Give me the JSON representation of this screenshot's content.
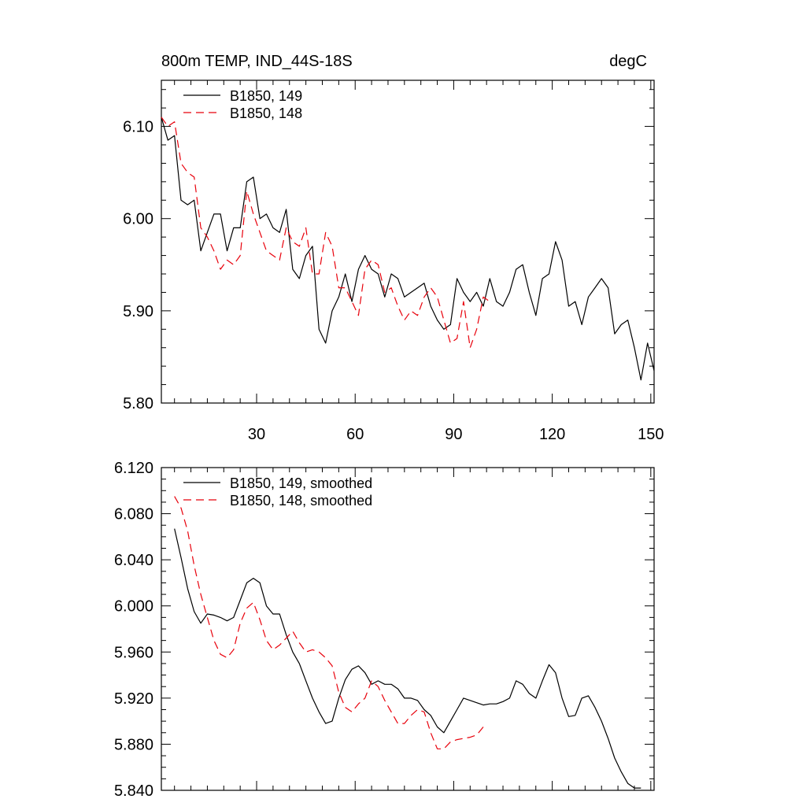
{
  "chart_data": [
    {
      "type": "line",
      "title_left": "800m TEMP, IND_44S-18S",
      "title_right": "degC",
      "xlim": [
        1,
        151
      ],
      "ylim": [
        5.8,
        6.15
      ],
      "yticks": [
        5.8,
        5.9,
        6.0,
        6.1
      ],
      "ytick_labels": [
        "5.80",
        "5.90",
        "6.00",
        "6.10"
      ],
      "xticks": [
        30,
        60,
        90,
        120,
        150
      ],
      "xtick_labels": [
        "30",
        "60",
        "90",
        "120",
        "150"
      ],
      "series": [
        {
          "name": "B1850, 149",
          "color": "#000000",
          "dash": "solid",
          "x": [
            1,
            3,
            5,
            7,
            9,
            11,
            13,
            15,
            17,
            19,
            21,
            23,
            25,
            27,
            29,
            31,
            33,
            35,
            37,
            39,
            41,
            43,
            45,
            47,
            49,
            51,
            53,
            55,
            57,
            59,
            61,
            63,
            65,
            67,
            69,
            71,
            73,
            75,
            77,
            79,
            81,
            83,
            85,
            87,
            89,
            91,
            93,
            95,
            97,
            99,
            101,
            103,
            105,
            107,
            109,
            111,
            113,
            115,
            117,
            119,
            121,
            123,
            125,
            127,
            129,
            131,
            133,
            135,
            137,
            139,
            141,
            143,
            145,
            147,
            149,
            151
          ],
          "values": [
            6.11,
            6.085,
            6.09,
            6.02,
            6.015,
            6.02,
            5.965,
            5.985,
            6.005,
            6.005,
            5.965,
            5.99,
            5.99,
            6.04,
            6.045,
            6.0,
            6.005,
            5.99,
            5.985,
            6.01,
            5.945,
            5.935,
            5.96,
            5.97,
            5.88,
            5.865,
            5.9,
            5.915,
            5.94,
            5.91,
            5.945,
            5.96,
            5.945,
            5.94,
            5.915,
            5.94,
            5.935,
            5.915,
            5.92,
            5.925,
            5.93,
            5.905,
            5.89,
            5.88,
            5.885,
            5.935,
            5.92,
            5.91,
            5.92,
            5.905,
            5.935,
            5.91,
            5.905,
            5.92,
            5.945,
            5.95,
            5.92,
            5.895,
            5.935,
            5.94,
            5.975,
            5.955,
            5.905,
            5.91,
            5.885,
            5.915,
            5.925,
            5.935,
            5.925,
            5.875,
            5.885,
            5.89,
            5.86,
            5.825,
            5.865,
            5.835
          ]
        },
        {
          "name": "B1850, 148",
          "color": "#e8000b",
          "dash": "10,6",
          "x": [
            1,
            3,
            5,
            7,
            9,
            11,
            13,
            15,
            17,
            19,
            21,
            23,
            25,
            27,
            29,
            31,
            33,
            35,
            37,
            39,
            41,
            43,
            45,
            47,
            49,
            51,
            53,
            55,
            57,
            59,
            61,
            63,
            65,
            67,
            69,
            71,
            73,
            75,
            77,
            79,
            81,
            83,
            85,
            87,
            89,
            91,
            93,
            95,
            97,
            99,
            101
          ],
          "values": [
            6.11,
            6.1,
            6.105,
            6.06,
            6.05,
            6.045,
            5.99,
            5.98,
            5.965,
            5.945,
            5.955,
            5.95,
            5.96,
            6.03,
            6.005,
            5.985,
            5.965,
            5.96,
            5.955,
            5.99,
            5.975,
            5.97,
            5.99,
            5.94,
            5.94,
            5.985,
            5.97,
            5.925,
            5.925,
            5.91,
            5.895,
            5.945,
            5.955,
            5.95,
            5.92,
            5.925,
            5.905,
            5.89,
            5.9,
            5.895,
            5.915,
            5.925,
            5.915,
            5.89,
            5.865,
            5.87,
            5.91,
            5.86,
            5.88,
            5.915,
            5.91
          ]
        }
      ]
    },
    {
      "type": "line",
      "xlim": [
        1,
        151
      ],
      "ylim": [
        5.84,
        6.12
      ],
      "yticks": [
        5.84,
        5.88,
        5.92,
        5.96,
        6.0,
        6.04,
        6.08,
        6.12
      ],
      "ytick_labels": [
        "5.840",
        "5.880",
        "5.920",
        "5.960",
        "6.000",
        "6.040",
        "6.080",
        "6.120"
      ],
      "xticks": [
        30,
        60,
        90,
        120,
        150
      ],
      "series": [
        {
          "name": "B1850, 149, smoothed",
          "color": "#000000",
          "dash": "solid",
          "x": [
            5,
            7,
            9,
            11,
            13,
            15,
            17,
            19,
            21,
            23,
            25,
            27,
            29,
            31,
            33,
            35,
            37,
            39,
            41,
            43,
            45,
            47,
            49,
            51,
            53,
            55,
            57,
            59,
            61,
            63,
            65,
            67,
            69,
            71,
            73,
            75,
            77,
            79,
            81,
            83,
            85,
            87,
            89,
            91,
            93,
            95,
            97,
            99,
            101,
            103,
            105,
            107,
            109,
            111,
            113,
            115,
            117,
            119,
            121,
            123,
            125,
            127,
            129,
            131,
            133,
            135,
            137,
            139,
            141,
            143,
            145,
            147
          ],
          "values": [
            6.067,
            6.042,
            6.015,
            5.995,
            5.985,
            5.993,
            5.992,
            5.99,
            5.987,
            5.99,
            6.005,
            6.02,
            6.024,
            6.02,
            6.0,
            5.993,
            5.993,
            5.975,
            5.96,
            5.95,
            5.935,
            5.92,
            5.908,
            5.898,
            5.9,
            5.92,
            5.936,
            5.945,
            5.948,
            5.942,
            5.932,
            5.935,
            5.932,
            5.932,
            5.928,
            5.92,
            5.92,
            5.918,
            5.91,
            5.905,
            5.895,
            5.89,
            5.9,
            5.91,
            5.92,
            5.918,
            5.916,
            5.914,
            5.915,
            5.915,
            5.917,
            5.92,
            5.935,
            5.932,
            5.924,
            5.92,
            5.935,
            5.949,
            5.942,
            5.92,
            5.904,
            5.905,
            5.92,
            5.922,
            5.912,
            5.9,
            5.885,
            5.868,
            5.856,
            5.846,
            5.842,
            5.842
          ]
        },
        {
          "name": "B1850, 148, smoothed",
          "color": "#e8000b",
          "dash": "10,6",
          "x": [
            5,
            7,
            9,
            11,
            13,
            15,
            17,
            19,
            21,
            23,
            25,
            27,
            29,
            31,
            33,
            35,
            37,
            39,
            41,
            43,
            45,
            47,
            49,
            51,
            53,
            55,
            57,
            59,
            61,
            63,
            65,
            67,
            69,
            71,
            73,
            75,
            77,
            79,
            81,
            83,
            85,
            87,
            89,
            91,
            93,
            95,
            97,
            99
          ],
          "values": [
            6.095,
            6.085,
            6.065,
            6.035,
            6.01,
            5.99,
            5.97,
            5.958,
            5.955,
            5.962,
            5.985,
            5.998,
            6.003,
            5.988,
            5.97,
            5.962,
            5.966,
            5.972,
            5.978,
            5.968,
            5.96,
            5.962,
            5.96,
            5.955,
            5.948,
            5.925,
            5.912,
            5.908,
            5.915,
            5.92,
            5.935,
            5.93,
            5.918,
            5.908,
            5.898,
            5.898,
            5.905,
            5.91,
            5.908,
            5.89,
            5.876,
            5.876,
            5.882,
            5.884,
            5.885,
            5.886,
            5.888,
            5.895
          ]
        }
      ]
    }
  ]
}
